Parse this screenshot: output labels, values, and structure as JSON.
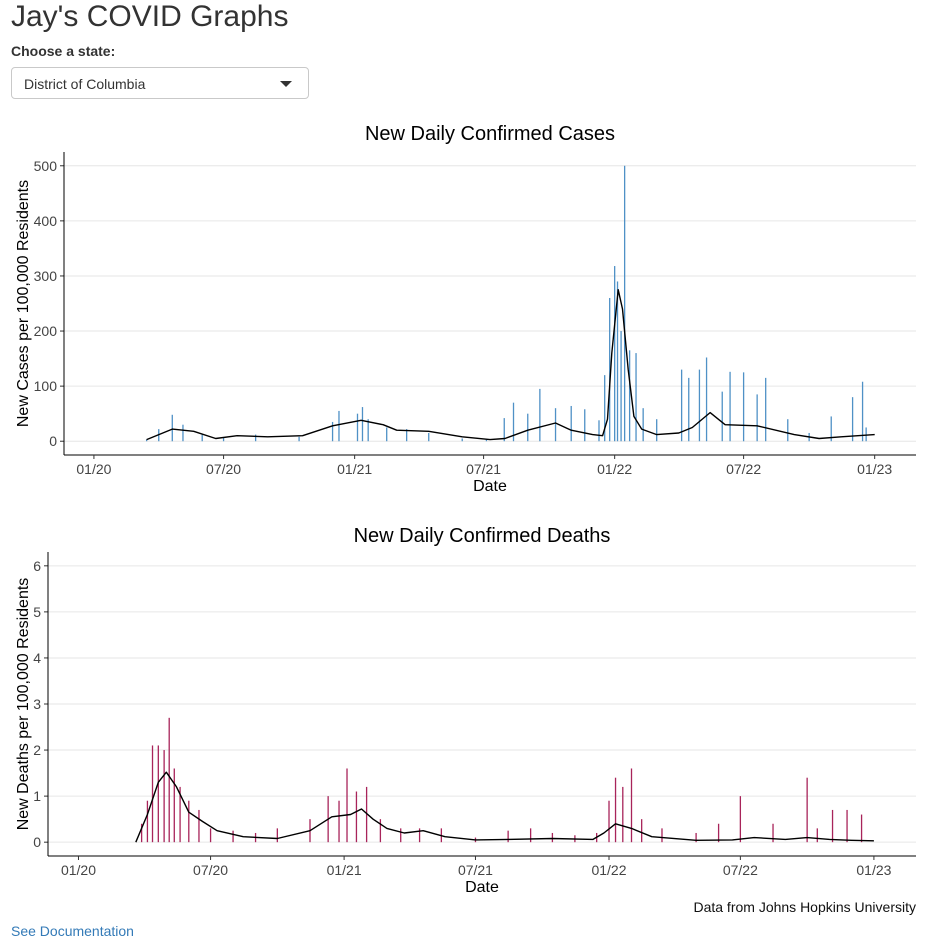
{
  "header": {
    "title": "Jay's COVID Graphs"
  },
  "state_select": {
    "label": "Choose a state:",
    "value": "District of Columbia"
  },
  "footer": {
    "credit": "Data from Johns Hopkins University",
    "doc_link": "See Documentation"
  },
  "chart_data": [
    {
      "type": "bar",
      "title": "New Daily Confirmed Cases",
      "xlabel": "Date",
      "ylabel": "New Cases per 100,000 Residents",
      "x_ticks": [
        "01/20",
        "07/20",
        "01/21",
        "07/21",
        "01/22",
        "07/22",
        "01/23"
      ],
      "x_range": [
        "2019-11-20",
        "2023-02-28"
      ],
      "y_ticks": [
        0,
        100,
        200,
        300,
        400,
        500
      ],
      "ylim": [
        -25,
        525
      ],
      "grid": true,
      "bar_color": "#4f91c6",
      "line_color": "#000000",
      "bars": [
        [
          "2020-03-15",
          3
        ],
        [
          "2020-04-01",
          22
        ],
        [
          "2020-04-20",
          48
        ],
        [
          "2020-05-05",
          30
        ],
        [
          "2020-06-01",
          12
        ],
        [
          "2020-07-01",
          6
        ],
        [
          "2020-08-15",
          12
        ],
        [
          "2020-10-15",
          8
        ],
        [
          "2020-12-01",
          35
        ],
        [
          "2020-12-10",
          55
        ],
        [
          "2021-01-05",
          50
        ],
        [
          "2021-01-12",
          62
        ],
        [
          "2021-01-20",
          40
        ],
        [
          "2021-02-15",
          25
        ],
        [
          "2021-03-15",
          22
        ],
        [
          "2021-04-15",
          15
        ],
        [
          "2021-06-01",
          5
        ],
        [
          "2021-07-05",
          3
        ],
        [
          "2021-07-30",
          42
        ],
        [
          "2021-08-12",
          70
        ],
        [
          "2021-09-01",
          50
        ],
        [
          "2021-09-18",
          95
        ],
        [
          "2021-10-10",
          60
        ],
        [
          "2021-11-01",
          64
        ],
        [
          "2021-11-20",
          58
        ],
        [
          "2021-12-10",
          38
        ],
        [
          "2021-12-18",
          120
        ],
        [
          "2021-12-25",
          260
        ],
        [
          "2022-01-01",
          318
        ],
        [
          "2022-01-05",
          290
        ],
        [
          "2022-01-10",
          200
        ],
        [
          "2022-01-15",
          500
        ],
        [
          "2022-01-22",
          165
        ],
        [
          "2022-01-31",
          160
        ],
        [
          "2022-02-10",
          60
        ],
        [
          "2022-03-01",
          40
        ],
        [
          "2022-04-05",
          130
        ],
        [
          "2022-04-15",
          115
        ],
        [
          "2022-04-30",
          130
        ],
        [
          "2022-05-10",
          152
        ],
        [
          "2022-06-01",
          90
        ],
        [
          "2022-06-12",
          126
        ],
        [
          "2022-07-01",
          125
        ],
        [
          "2022-07-20",
          85
        ],
        [
          "2022-08-01",
          115
        ],
        [
          "2022-09-01",
          40
        ],
        [
          "2022-10-01",
          15
        ],
        [
          "2022-11-01",
          45
        ],
        [
          "2022-12-01",
          80
        ],
        [
          "2022-12-15",
          108
        ],
        [
          "2022-12-20",
          25
        ]
      ],
      "trend": [
        [
          "2020-03-15",
          3
        ],
        [
          "2020-04-20",
          22
        ],
        [
          "2020-05-20",
          18
        ],
        [
          "2020-06-20",
          5
        ],
        [
          "2020-07-20",
          10
        ],
        [
          "2020-09-01",
          8
        ],
        [
          "2020-10-20",
          10
        ],
        [
          "2020-12-01",
          28
        ],
        [
          "2021-01-10",
          38
        ],
        [
          "2021-02-10",
          30
        ],
        [
          "2021-03-01",
          20
        ],
        [
          "2021-04-15",
          18
        ],
        [
          "2021-06-01",
          8
        ],
        [
          "2021-07-10",
          3
        ],
        [
          "2021-07-31",
          5
        ],
        [
          "2021-09-01",
          20
        ],
        [
          "2021-10-10",
          33
        ],
        [
          "2021-11-01",
          20
        ],
        [
          "2021-12-01",
          12
        ],
        [
          "2021-12-15",
          10
        ],
        [
          "2021-12-22",
          40
        ],
        [
          "2021-12-28",
          160
        ],
        [
          "2022-01-06",
          275
        ],
        [
          "2022-01-12",
          240
        ],
        [
          "2022-01-20",
          130
        ],
        [
          "2022-01-28",
          45
        ],
        [
          "2022-02-08",
          22
        ],
        [
          "2022-03-01",
          12
        ],
        [
          "2022-04-01",
          15
        ],
        [
          "2022-04-20",
          25
        ],
        [
          "2022-05-15",
          52
        ],
        [
          "2022-06-05",
          30
        ],
        [
          "2022-07-20",
          28
        ],
        [
          "2022-09-10",
          12
        ],
        [
          "2022-10-15",
          5
        ],
        [
          "2022-11-15",
          8
        ],
        [
          "2023-01-01",
          12
        ]
      ]
    },
    {
      "type": "bar",
      "title": "New Daily Confirmed Deaths",
      "xlabel": "Date",
      "ylabel": "New Deaths per 100,000 Residents",
      "x_ticks": [
        "01/20",
        "07/20",
        "01/21",
        "07/21",
        "01/22",
        "07/22",
        "01/23"
      ],
      "x_range": [
        "2019-11-20",
        "2023-02-28"
      ],
      "y_ticks": [
        0,
        1,
        2,
        3,
        4,
        5,
        6
      ],
      "ylim": [
        -0.3,
        6.3
      ],
      "grid": true,
      "bar_color": "#a8245a",
      "line_color": "#000000",
      "bars": [
        [
          "2020-03-28",
          0.4
        ],
        [
          "2020-04-05",
          0.9
        ],
        [
          "2020-04-12",
          2.1
        ],
        [
          "2020-04-20",
          2.1
        ],
        [
          "2020-04-28",
          2.0
        ],
        [
          "2020-05-05",
          2.7
        ],
        [
          "2020-05-12",
          1.6
        ],
        [
          "2020-05-20",
          1.2
        ],
        [
          "2020-06-01",
          0.9
        ],
        [
          "2020-06-15",
          0.7
        ],
        [
          "2020-07-01",
          0.3
        ],
        [
          "2020-08-01",
          0.25
        ],
        [
          "2020-09-01",
          0.2
        ],
        [
          "2020-10-01",
          0.3
        ],
        [
          "2020-11-15",
          0.5
        ],
        [
          "2020-12-10",
          1.0
        ],
        [
          "2020-12-25",
          0.9
        ],
        [
          "2021-01-05",
          1.6
        ],
        [
          "2021-01-18",
          1.1
        ],
        [
          "2021-02-01",
          1.2
        ],
        [
          "2021-02-20",
          0.5
        ],
        [
          "2021-03-20",
          0.3
        ],
        [
          "2021-04-15",
          0.3
        ],
        [
          "2021-05-15",
          0.3
        ],
        [
          "2021-07-01",
          0.1
        ],
        [
          "2021-08-15",
          0.25
        ],
        [
          "2021-09-15",
          0.3
        ],
        [
          "2021-10-15",
          0.2
        ],
        [
          "2021-11-15",
          0.15
        ],
        [
          "2021-12-15",
          0.2
        ],
        [
          "2022-01-01",
          0.9
        ],
        [
          "2022-01-10",
          1.4
        ],
        [
          "2022-01-20",
          1.2
        ],
        [
          "2022-02-01",
          1.6
        ],
        [
          "2022-02-15",
          0.5
        ],
        [
          "2022-03-15",
          0.3
        ],
        [
          "2022-05-01",
          0.2
        ],
        [
          "2022-06-01",
          0.4
        ],
        [
          "2022-07-01",
          1.0
        ],
        [
          "2022-08-15",
          0.4
        ],
        [
          "2022-10-01",
          1.4
        ],
        [
          "2022-10-15",
          0.3
        ],
        [
          "2022-11-05",
          0.7
        ],
        [
          "2022-11-25",
          0.7
        ],
        [
          "2022-12-15",
          0.6
        ]
      ],
      "trend": [
        [
          "2020-03-20",
          0.0
        ],
        [
          "2020-04-05",
          0.6
        ],
        [
          "2020-04-20",
          1.3
        ],
        [
          "2020-05-01",
          1.52
        ],
        [
          "2020-05-15",
          1.2
        ],
        [
          "2020-06-01",
          0.65
        ],
        [
          "2020-06-20",
          0.45
        ],
        [
          "2020-07-10",
          0.25
        ],
        [
          "2020-08-15",
          0.12
        ],
        [
          "2020-10-01",
          0.08
        ],
        [
          "2020-11-15",
          0.25
        ],
        [
          "2020-12-15",
          0.55
        ],
        [
          "2021-01-10",
          0.6
        ],
        [
          "2021-01-25",
          0.72
        ],
        [
          "2021-02-10",
          0.5
        ],
        [
          "2021-03-01",
          0.3
        ],
        [
          "2021-03-25",
          0.2
        ],
        [
          "2021-04-20",
          0.25
        ],
        [
          "2021-05-20",
          0.12
        ],
        [
          "2021-07-01",
          0.05
        ],
        [
          "2021-08-15",
          0.06
        ],
        [
          "2021-10-15",
          0.08
        ],
        [
          "2021-12-10",
          0.06
        ],
        [
          "2021-12-25",
          0.2
        ],
        [
          "2022-01-10",
          0.4
        ],
        [
          "2022-02-01",
          0.3
        ],
        [
          "2022-03-01",
          0.12
        ],
        [
          "2022-05-01",
          0.04
        ],
        [
          "2022-06-20",
          0.05
        ],
        [
          "2022-07-20",
          0.1
        ],
        [
          "2022-09-01",
          0.06
        ],
        [
          "2022-10-01",
          0.1
        ],
        [
          "2022-11-01",
          0.06
        ],
        [
          "2022-12-01",
          0.04
        ],
        [
          "2023-01-01",
          0.03
        ]
      ]
    }
  ]
}
